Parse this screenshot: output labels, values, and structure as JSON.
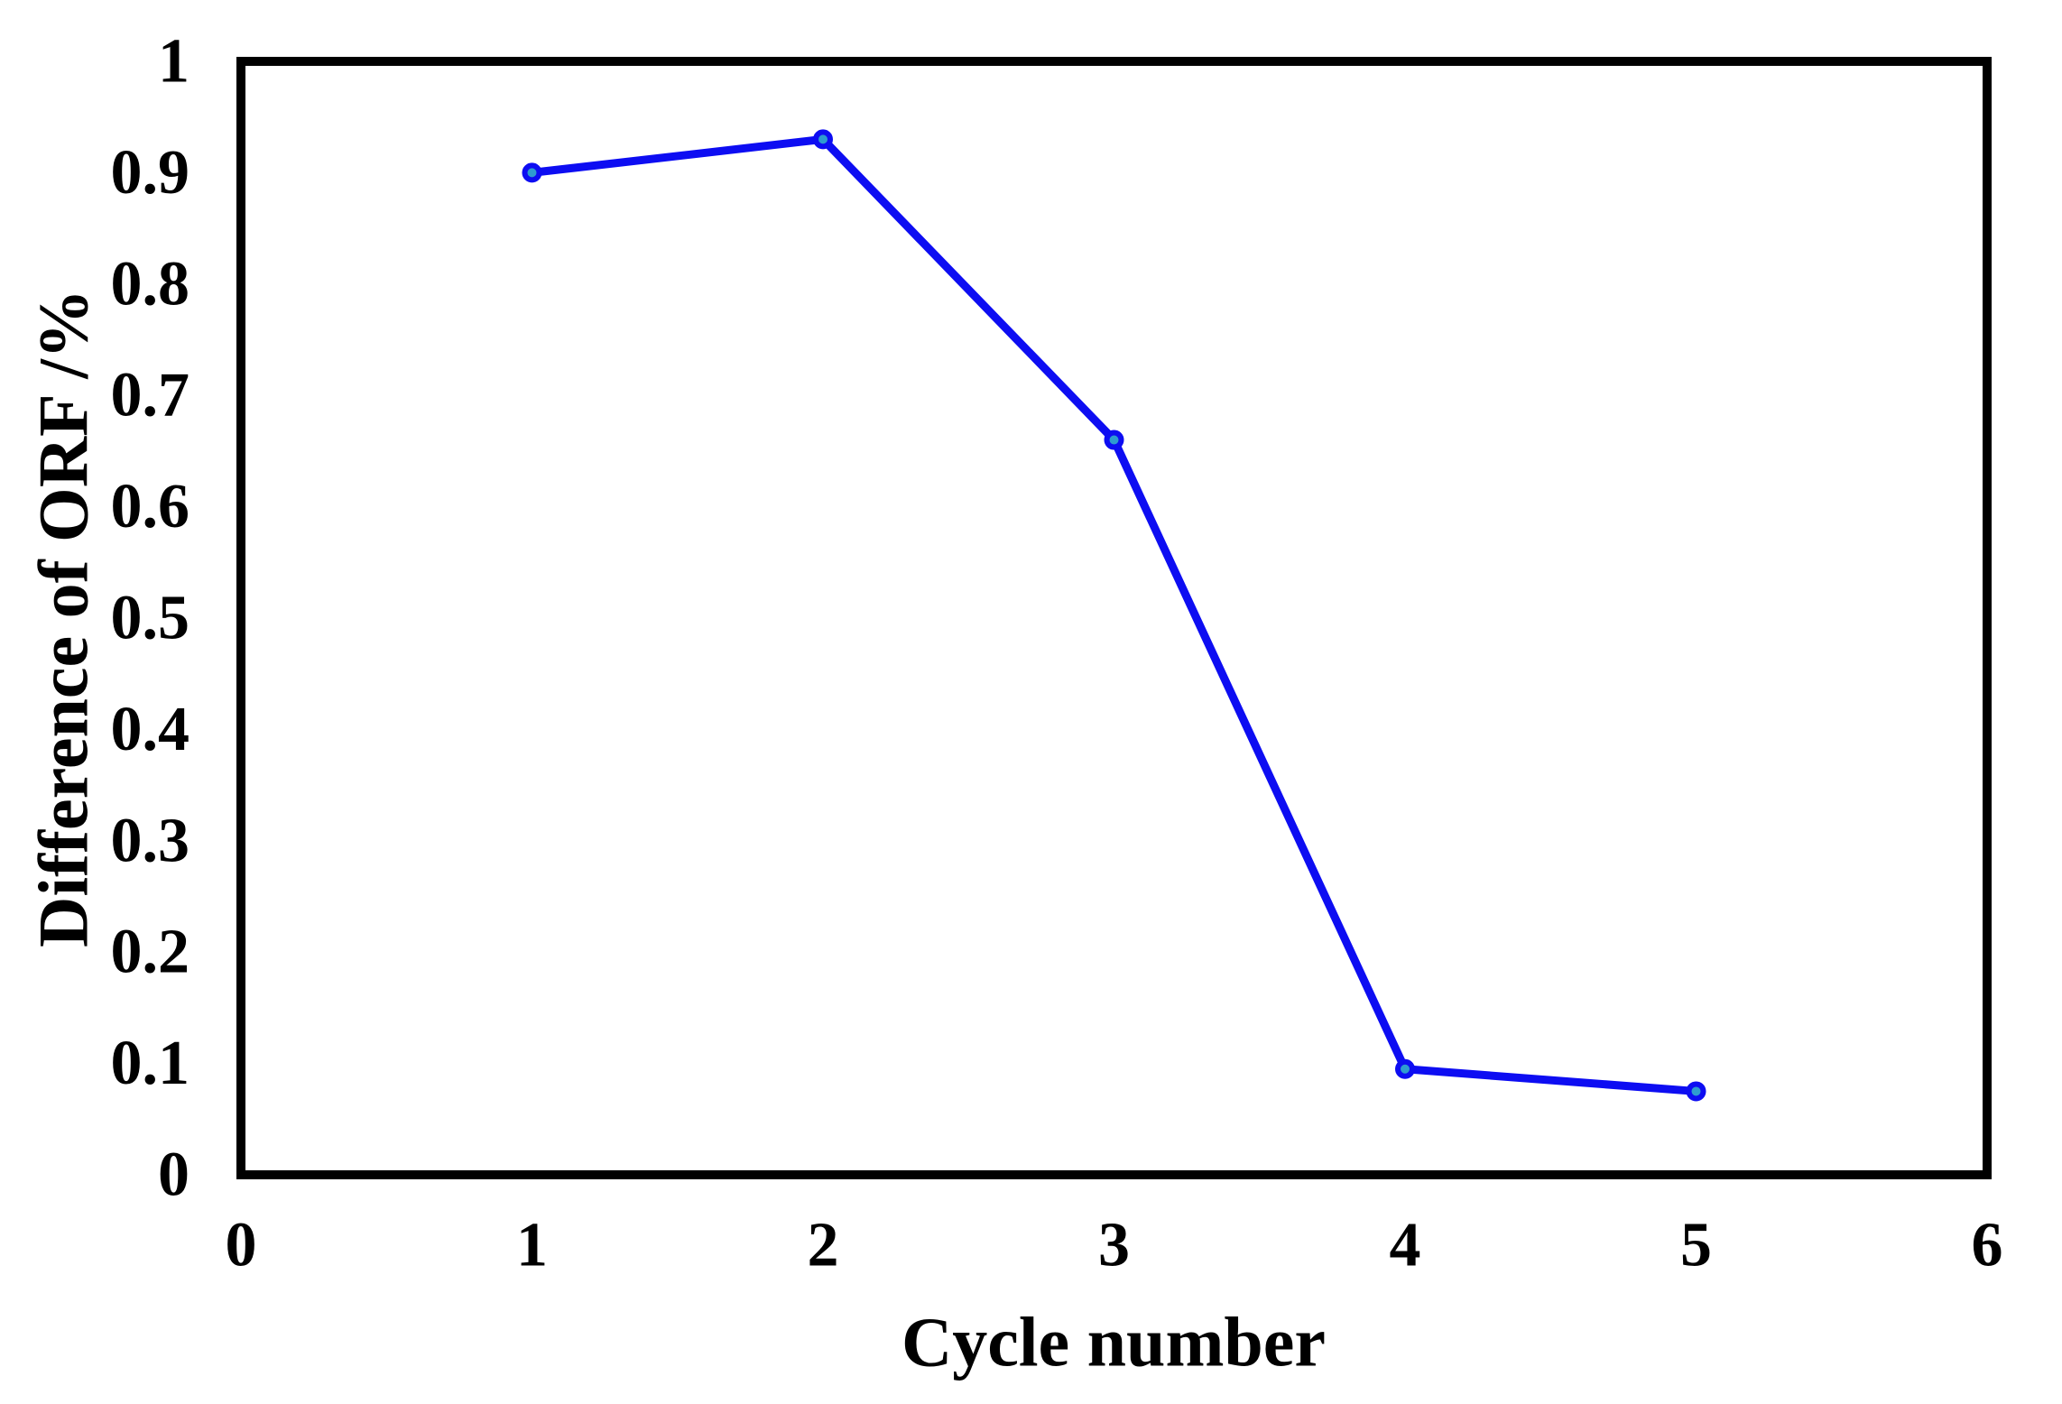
{
  "chart_data": {
    "type": "line",
    "title": "",
    "xlabel": "Cycle number",
    "ylabel": "Difference of ORF /%",
    "x": [
      1,
      2,
      3,
      4,
      5
    ],
    "y": [
      0.9,
      0.93,
      0.66,
      0.095,
      0.075
    ],
    "series": [
      {
        "name": "Difference of ORF",
        "x": [
          1,
          2,
          3,
          4,
          5
        ],
        "values": [
          0.9,
          0.93,
          0.66,
          0.095,
          0.075
        ]
      }
    ],
    "xlim": [
      0,
      6
    ],
    "ylim": [
      0,
      1
    ],
    "x_ticks": [
      {
        "v": 0,
        "label": "0"
      },
      {
        "v": 1,
        "label": "1"
      },
      {
        "v": 2,
        "label": "2"
      },
      {
        "v": 3,
        "label": "3"
      },
      {
        "v": 4,
        "label": "4"
      },
      {
        "v": 5,
        "label": "5"
      },
      {
        "v": 6,
        "label": "6"
      }
    ],
    "y_ticks": [
      {
        "v": 1.0,
        "label": "1"
      },
      {
        "v": 0.9,
        "label": "0.9"
      },
      {
        "v": 0.8,
        "label": "0.8"
      },
      {
        "v": 0.7,
        "label": "0.7"
      },
      {
        "v": 0.6,
        "label": "0.6"
      },
      {
        "v": 0.5,
        "label": "0.5"
      },
      {
        "v": 0.4,
        "label": "0.4"
      },
      {
        "v": 0.3,
        "label": "0.3"
      },
      {
        "v": 0.2,
        "label": "0.2"
      },
      {
        "v": 0.1,
        "label": "0.1"
      },
      {
        "v": 0.0,
        "label": "0"
      }
    ],
    "grid": false,
    "legend": "none",
    "colors": {
      "line": "#0d0df2",
      "marker_fill": "#2e9ccf",
      "marker_stroke": "#0d0df2",
      "axis": "#000000",
      "text": "#000000",
      "background": "#ffffff"
    }
  }
}
